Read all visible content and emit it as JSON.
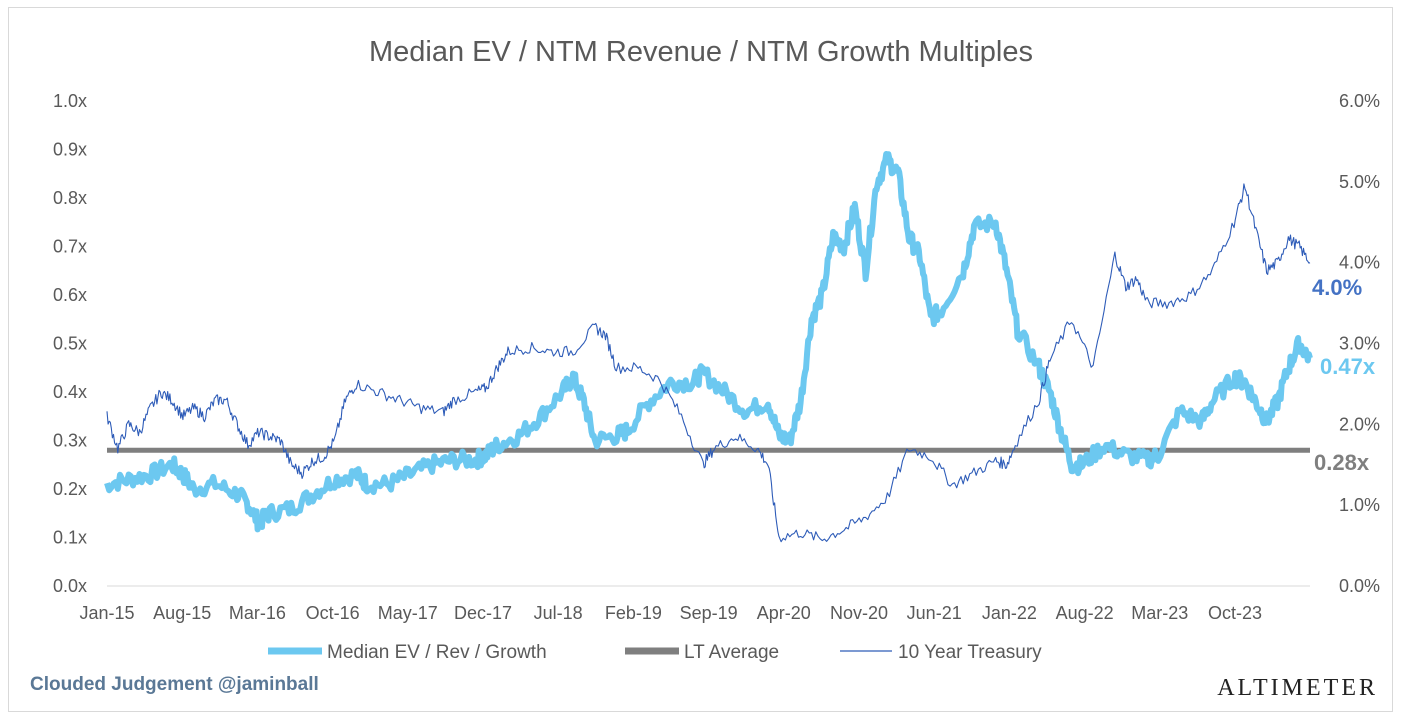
{
  "chart_data": {
    "type": "line",
    "title": "Median EV / NTM Revenue / NTM Growth Multiples",
    "x_ticks": [
      "Jan-15",
      "Aug-15",
      "Mar-16",
      "Oct-16",
      "May-17",
      "Dec-17",
      "Jul-18",
      "Feb-19",
      "Sep-19",
      "Apr-20",
      "Nov-20",
      "Jun-21",
      "Jan-22",
      "Aug-22",
      "Mar-23",
      "Oct-23"
    ],
    "y_left": {
      "ylim": [
        0.0,
        1.0
      ],
      "ticks": [
        "0.0x",
        "0.1x",
        "0.2x",
        "0.3x",
        "0.4x",
        "0.5x",
        "0.6x",
        "0.7x",
        "0.8x",
        "0.9x",
        "1.0x"
      ]
    },
    "y_right": {
      "ylim": [
        0.0,
        6.0
      ],
      "ticks": [
        "0.0%",
        "1.0%",
        "2.0%",
        "3.0%",
        "4.0%",
        "5.0%",
        "6.0%"
      ]
    },
    "grid": false,
    "legend_position": "bottom",
    "series": [
      {
        "name": "Median EV / Rev / Growth",
        "axis": "left",
        "color": "#6cc8f0",
        "points": [
          [
            "2015-01",
            0.21
          ],
          [
            "2015-03",
            0.22
          ],
          [
            "2015-05",
            0.23
          ],
          [
            "2015-07",
            0.25
          ],
          [
            "2015-08",
            0.23
          ],
          [
            "2015-09",
            0.2
          ],
          [
            "2015-11",
            0.21
          ],
          [
            "2016-01",
            0.19
          ],
          [
            "2016-02",
            0.17
          ],
          [
            "2016-03",
            0.13
          ],
          [
            "2016-04",
            0.15
          ],
          [
            "2016-06",
            0.16
          ],
          [
            "2016-08",
            0.19
          ],
          [
            "2016-10",
            0.22
          ],
          [
            "2016-12",
            0.23
          ],
          [
            "2017-01",
            0.21
          ],
          [
            "2017-03",
            0.21
          ],
          [
            "2017-05",
            0.23
          ],
          [
            "2017-07",
            0.25
          ],
          [
            "2017-09",
            0.26
          ],
          [
            "2017-11",
            0.26
          ],
          [
            "2017-12",
            0.27
          ],
          [
            "2018-01",
            0.29
          ],
          [
            "2018-03",
            0.31
          ],
          [
            "2018-05",
            0.35
          ],
          [
            "2018-07",
            0.4
          ],
          [
            "2018-08",
            0.43
          ],
          [
            "2018-09",
            0.38
          ],
          [
            "2018-10",
            0.3
          ],
          [
            "2018-12",
            0.31
          ],
          [
            "2019-01",
            0.32
          ],
          [
            "2019-03",
            0.38
          ],
          [
            "2019-05",
            0.42
          ],
          [
            "2019-07",
            0.42
          ],
          [
            "2019-08",
            0.44
          ],
          [
            "2019-10",
            0.4
          ],
          [
            "2019-12",
            0.36
          ],
          [
            "2020-02",
            0.38
          ],
          [
            "2020-03",
            0.31
          ],
          [
            "2020-04",
            0.3
          ],
          [
            "2020-05",
            0.38
          ],
          [
            "2020-06",
            0.55
          ],
          [
            "2020-07",
            0.6
          ],
          [
            "2020-08",
            0.72
          ],
          [
            "2020-09",
            0.7
          ],
          [
            "2020-10",
            0.78
          ],
          [
            "2020-11",
            0.65
          ],
          [
            "2020-12",
            0.83
          ],
          [
            "2021-01",
            0.88
          ],
          [
            "2021-02",
            0.85
          ],
          [
            "2021-03",
            0.72
          ],
          [
            "2021-04",
            0.68
          ],
          [
            "2021-05",
            0.55
          ],
          [
            "2021-06",
            0.57
          ],
          [
            "2021-08",
            0.65
          ],
          [
            "2021-09",
            0.74
          ],
          [
            "2021-11",
            0.75
          ],
          [
            "2021-12",
            0.65
          ],
          [
            "2022-01",
            0.53
          ],
          [
            "2022-03",
            0.45
          ],
          [
            "2022-04",
            0.4
          ],
          [
            "2022-05",
            0.32
          ],
          [
            "2022-06",
            0.25
          ],
          [
            "2022-07",
            0.25
          ],
          [
            "2022-09",
            0.29
          ],
          [
            "2022-11",
            0.27
          ],
          [
            "2023-01",
            0.26
          ],
          [
            "2023-02",
            0.27
          ],
          [
            "2023-04",
            0.36
          ],
          [
            "2023-06",
            0.34
          ],
          [
            "2023-07",
            0.38
          ],
          [
            "2023-09",
            0.43
          ],
          [
            "2023-10",
            0.42
          ],
          [
            "2023-11",
            0.38
          ],
          [
            "2023-12",
            0.34
          ],
          [
            "2024-01",
            0.38
          ],
          [
            "2024-02",
            0.45
          ],
          [
            "2024-03",
            0.5
          ],
          [
            "2024-04",
            0.47
          ]
        ]
      },
      {
        "name": "LT Average",
        "axis": "left",
        "color": "#7f7f7f",
        "points": [
          [
            "2015-01",
            0.28
          ],
          [
            "2024-04",
            0.28
          ]
        ]
      },
      {
        "name": "10 Year Treasury",
        "axis": "right",
        "color": "#2e5cb8",
        "points": [
          [
            "2015-01",
            2.1
          ],
          [
            "2015-02",
            1.7
          ],
          [
            "2015-03",
            2.0
          ],
          [
            "2015-04",
            1.9
          ],
          [
            "2015-05",
            2.2
          ],
          [
            "2015-06",
            2.4
          ],
          [
            "2015-07",
            2.3
          ],
          [
            "2015-08",
            2.1
          ],
          [
            "2015-09",
            2.2
          ],
          [
            "2015-10",
            2.1
          ],
          [
            "2015-11",
            2.3
          ],
          [
            "2015-12",
            2.3
          ],
          [
            "2016-01",
            2.0
          ],
          [
            "2016-02",
            1.75
          ],
          [
            "2016-03",
            1.9
          ],
          [
            "2016-04",
            1.85
          ],
          [
            "2016-05",
            1.8
          ],
          [
            "2016-06",
            1.5
          ],
          [
            "2016-07",
            1.4
          ],
          [
            "2016-08",
            1.55
          ],
          [
            "2016-09",
            1.6
          ],
          [
            "2016-10",
            1.8
          ],
          [
            "2016-11",
            2.3
          ],
          [
            "2016-12",
            2.5
          ],
          [
            "2017-02",
            2.4
          ],
          [
            "2017-04",
            2.3
          ],
          [
            "2017-06",
            2.2
          ],
          [
            "2017-08",
            2.15
          ],
          [
            "2017-09",
            2.3
          ],
          [
            "2017-11",
            2.4
          ],
          [
            "2017-12",
            2.45
          ],
          [
            "2018-01",
            2.7
          ],
          [
            "2018-02",
            2.9
          ],
          [
            "2018-04",
            2.95
          ],
          [
            "2018-06",
            2.9
          ],
          [
            "2018-08",
            2.9
          ],
          [
            "2018-10",
            3.2
          ],
          [
            "2018-11",
            3.1
          ],
          [
            "2018-12",
            2.7
          ],
          [
            "2019-02",
            2.7
          ],
          [
            "2019-04",
            2.55
          ],
          [
            "2019-06",
            2.1
          ],
          [
            "2019-08",
            1.5
          ],
          [
            "2019-09",
            1.7
          ],
          [
            "2019-11",
            1.85
          ],
          [
            "2020-01",
            1.7
          ],
          [
            "2020-02",
            1.5
          ],
          [
            "2020-03",
            0.6
          ],
          [
            "2020-05",
            0.66
          ],
          [
            "2020-07",
            0.58
          ],
          [
            "2020-09",
            0.7
          ],
          [
            "2020-11",
            0.85
          ],
          [
            "2021-01",
            1.1
          ],
          [
            "2021-03",
            1.7
          ],
          [
            "2021-05",
            1.6
          ],
          [
            "2021-07",
            1.25
          ],
          [
            "2021-09",
            1.4
          ],
          [
            "2021-11",
            1.55
          ],
          [
            "2021-12",
            1.5
          ],
          [
            "2022-01",
            1.8
          ],
          [
            "2022-03",
            2.3
          ],
          [
            "2022-04",
            2.8
          ],
          [
            "2022-06",
            3.3
          ],
          [
            "2022-08",
            2.7
          ],
          [
            "2022-10",
            4.1
          ],
          [
            "2022-11",
            3.7
          ],
          [
            "2022-12",
            3.8
          ],
          [
            "2023-01",
            3.5
          ],
          [
            "2023-03",
            3.5
          ],
          [
            "2023-05",
            3.6
          ],
          [
            "2023-07",
            3.9
          ],
          [
            "2023-09",
            4.5
          ],
          [
            "2023-10",
            4.95
          ],
          [
            "2023-11",
            4.4
          ],
          [
            "2023-12",
            3.9
          ],
          [
            "2024-01",
            4.0
          ],
          [
            "2024-02",
            4.3
          ],
          [
            "2024-03",
            4.2
          ],
          [
            "2024-04",
            4.0
          ]
        ]
      }
    ],
    "end_labels": [
      {
        "text": "4.0%",
        "color": "#4472c4"
      },
      {
        "text": "0.47x",
        "color": "#6cc8f0"
      },
      {
        "text": "0.28x",
        "color": "#7f7f7f"
      }
    ]
  },
  "footer": {
    "credit": "Clouded Judgement @jaminball",
    "brand": "ALTIMETER"
  }
}
